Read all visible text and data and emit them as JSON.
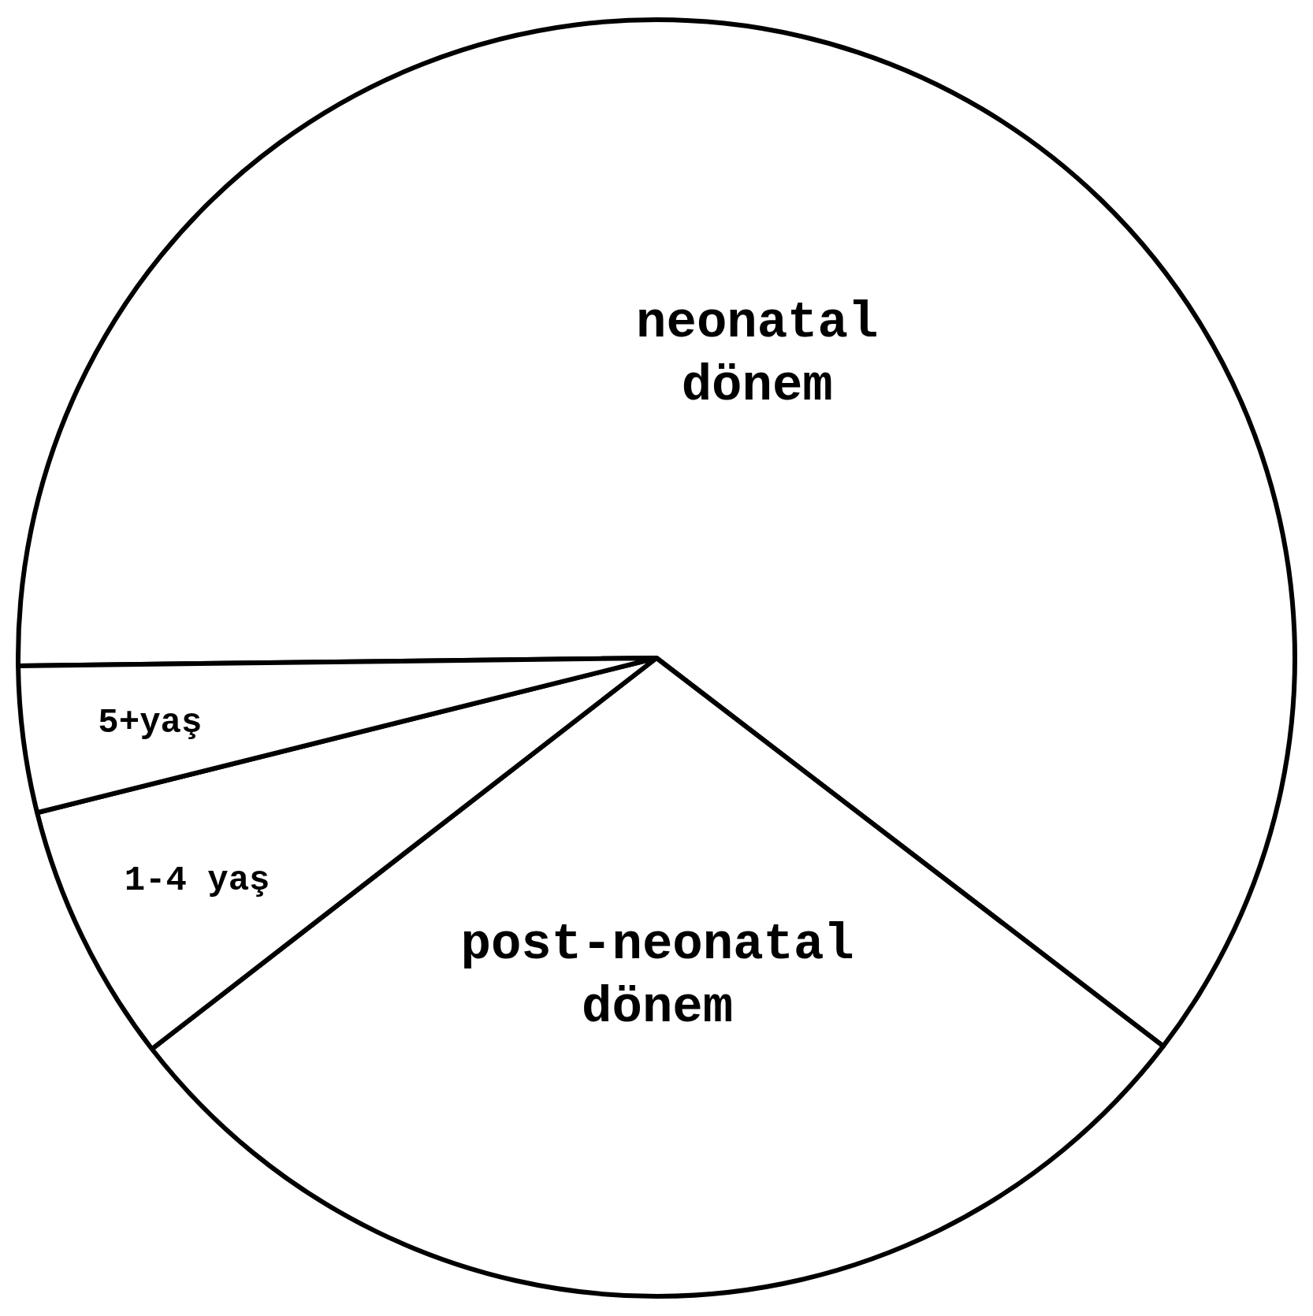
{
  "chart_data": {
    "type": "pie",
    "categories": [
      "neonatal dönem",
      "post-neonatal dönem",
      "1-4 yaş",
      "5+yaş"
    ],
    "values": [
      60.6,
      29.1,
      6.6,
      3.7
    ],
    "colors": [
      "#ffffff",
      "#ffffff",
      "#ffffff",
      "#ffffff"
    ],
    "legend": false
  }
}
